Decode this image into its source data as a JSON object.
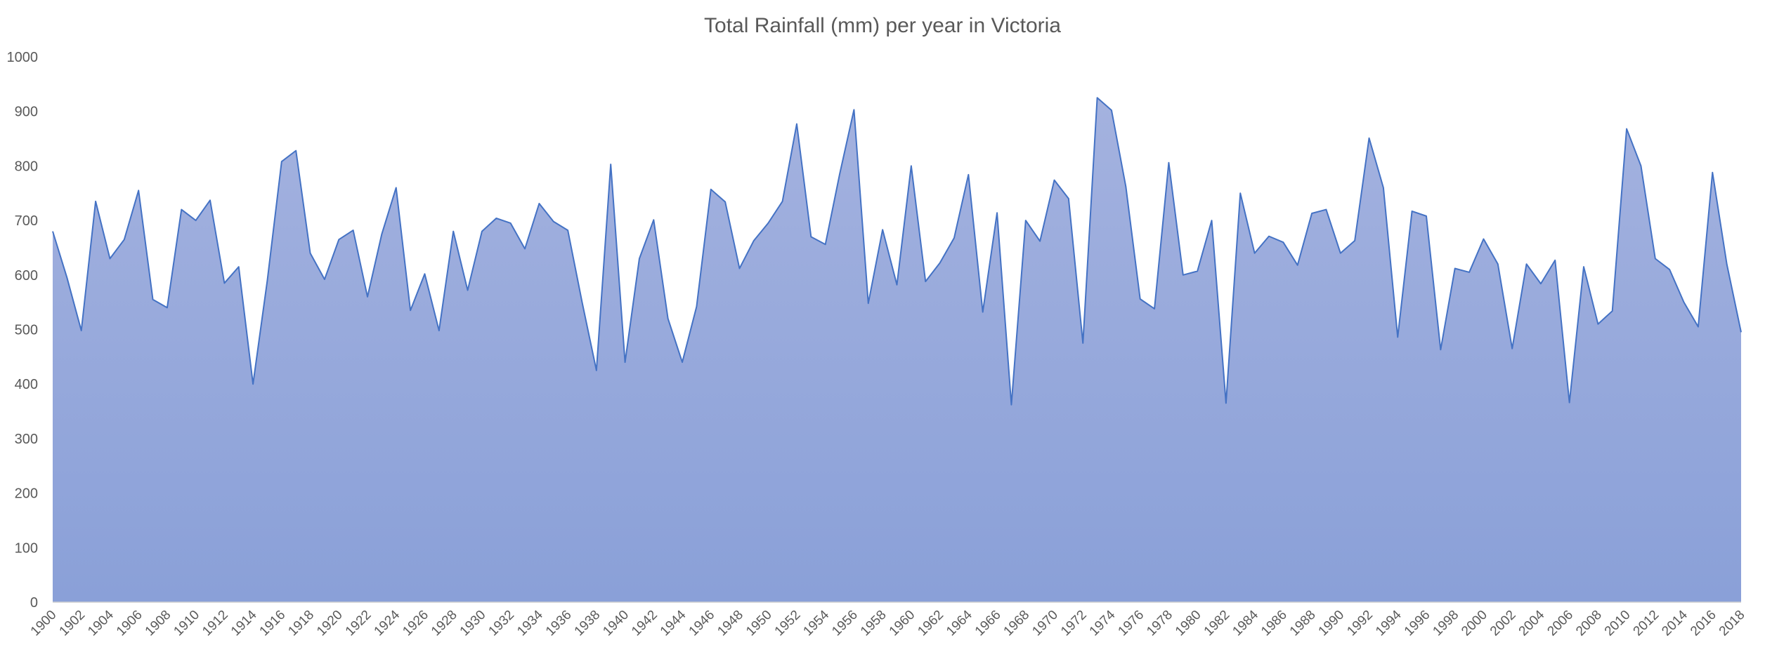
{
  "chart_data": {
    "type": "area",
    "title": "Total Rainfall (mm) per year in Victoria",
    "xlabel": "",
    "ylabel": "",
    "ylim": [
      0,
      1000
    ],
    "yticks": [
      0,
      100,
      200,
      300,
      400,
      500,
      600,
      700,
      800,
      900,
      1000
    ],
    "grid": false,
    "legend": "none",
    "colors": {
      "line": "#4472c4",
      "fill_top": "#a4b2df",
      "fill_bottom": "#8aa0d8",
      "text": "#595959"
    },
    "x": [
      1900,
      1901,
      1902,
      1903,
      1904,
      1905,
      1906,
      1907,
      1908,
      1909,
      1910,
      1911,
      1912,
      1913,
      1914,
      1915,
      1916,
      1917,
      1918,
      1919,
      1920,
      1921,
      1922,
      1923,
      1924,
      1925,
      1926,
      1927,
      1928,
      1929,
      1930,
      1931,
      1932,
      1933,
      1934,
      1935,
      1936,
      1937,
      1938,
      1939,
      1940,
      1941,
      1942,
      1943,
      1944,
      1945,
      1946,
      1947,
      1948,
      1949,
      1950,
      1951,
      1952,
      1953,
      1954,
      1955,
      1956,
      1957,
      1958,
      1959,
      1960,
      1961,
      1962,
      1963,
      1964,
      1965,
      1966,
      1967,
      1968,
      1969,
      1970,
      1971,
      1972,
      1973,
      1974,
      1975,
      1976,
      1977,
      1978,
      1979,
      1980,
      1981,
      1982,
      1983,
      1984,
      1985,
      1986,
      1987,
      1988,
      1989,
      1990,
      1991,
      1992,
      1993,
      1994,
      1995,
      1996,
      1997,
      1998,
      1999,
      2000,
      2001,
      2002,
      2003,
      2004,
      2005,
      2006,
      2007,
      2008,
      2009,
      2010,
      2011,
      2012,
      2013,
      2014,
      2015,
      2016,
      2017,
      2018
    ],
    "x_tick_labels": [
      "1900",
      "1902",
      "1904",
      "1906",
      "1908",
      "1910",
      "1912",
      "1914",
      "1916",
      "1918",
      "1920",
      "1922",
      "1924",
      "1926",
      "1928",
      "1930",
      "1932",
      "1934",
      "1936",
      "1938",
      "1940",
      "1942",
      "1944",
      "1946",
      "1948",
      "1950",
      "1952",
      "1954",
      "1956",
      "1958",
      "1960",
      "1962",
      "1964",
      "1966",
      "1968",
      "1970",
      "1972",
      "1974",
      "1976",
      "1978",
      "1980",
      "1982",
      "1984",
      "1986",
      "1988",
      "1990",
      "1992",
      "1994",
      "1996",
      "1998",
      "2000",
      "2002",
      "2004",
      "2006",
      "2008",
      "2010",
      "2012",
      "2014",
      "2016",
      "2018"
    ],
    "values": [
      680,
      595,
      498,
      735,
      630,
      665,
      755,
      555,
      540,
      720,
      700,
      737,
      585,
      615,
      400,
      590,
      808,
      828,
      640,
      592,
      665,
      682,
      560,
      675,
      760,
      535,
      602,
      498,
      680,
      572,
      680,
      704,
      695,
      648,
      731,
      698,
      682,
      550,
      425,
      803,
      440,
      630,
      701,
      520,
      440,
      542,
      757,
      734,
      612,
      663,
      695,
      735,
      877,
      670,
      656,
      785,
      903,
      548,
      683,
      582,
      800,
      588,
      622,
      668,
      784,
      532,
      714,
      362,
      700,
      662,
      774,
      740,
      475,
      925,
      902,
      762,
      556,
      538,
      806,
      600,
      607,
      700,
      365,
      750,
      640,
      671,
      660,
      618,
      713,
      720,
      640,
      663,
      851,
      760,
      486,
      717,
      708,
      463,
      612,
      605,
      666,
      620,
      465,
      620,
      584,
      627,
      366,
      615,
      510,
      534,
      868,
      800,
      630,
      610,
      550,
      505,
      788,
      620,
      495
    ]
  }
}
